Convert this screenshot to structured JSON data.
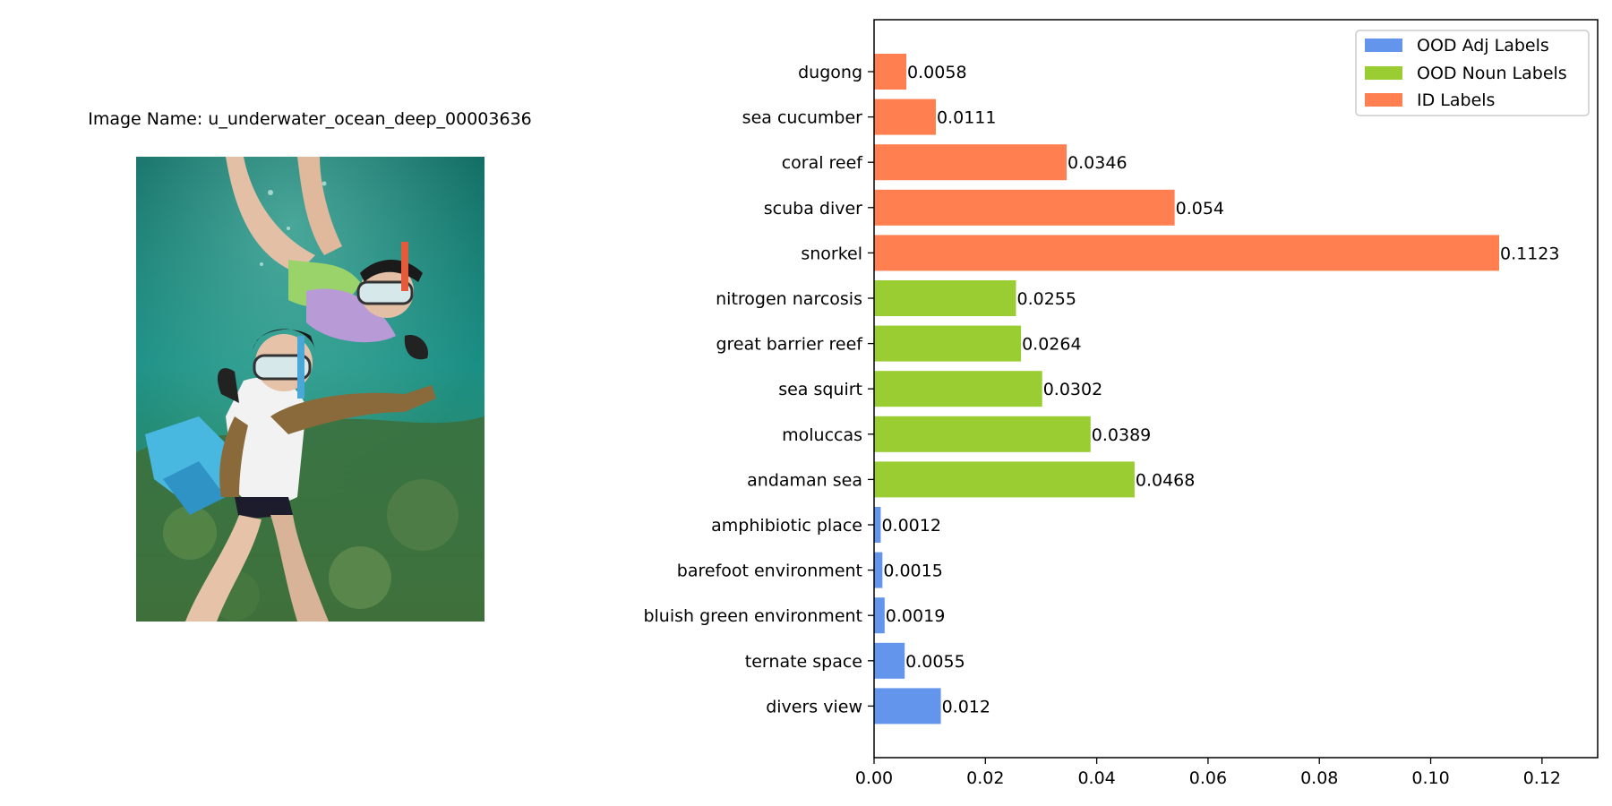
{
  "image_panel": {
    "caption": "Image Name: u_underwater_ocean_deep_00003636"
  },
  "chart_data": {
    "type": "bar",
    "orientation": "horizontal",
    "title": "",
    "xlabel": "",
    "ylabel": "",
    "xlim": [
      0,
      0.13
    ],
    "x_ticks": [
      0.0,
      0.02,
      0.04,
      0.06,
      0.08,
      0.1,
      0.12
    ],
    "x_tick_labels": [
      "0.00",
      "0.02",
      "0.04",
      "0.06",
      "0.08",
      "0.10",
      "0.12"
    ],
    "grid": false,
    "legend_position": "top-right",
    "series": [
      {
        "name": "OOD Adj Labels",
        "color": "#6495ED"
      },
      {
        "name": "OOD Noun Labels",
        "color": "#9ACD32"
      },
      {
        "name": "ID Labels",
        "color": "#FF7F50"
      }
    ],
    "bars": [
      {
        "label": "dugong",
        "value": 0.0058,
        "value_label": "0.0058",
        "series": 2
      },
      {
        "label": "sea cucumber",
        "value": 0.0111,
        "value_label": "0.0111",
        "series": 2
      },
      {
        "label": "coral reef",
        "value": 0.0346,
        "value_label": "0.0346",
        "series": 2
      },
      {
        "label": "scuba diver",
        "value": 0.054,
        "value_label": "0.054",
        "series": 2
      },
      {
        "label": "snorkel",
        "value": 0.1123,
        "value_label": "0.1123",
        "series": 2
      },
      {
        "label": "nitrogen narcosis",
        "value": 0.0255,
        "value_label": "0.0255",
        "series": 1
      },
      {
        "label": "great barrier reef",
        "value": 0.0264,
        "value_label": "0.0264",
        "series": 1
      },
      {
        "label": "sea squirt",
        "value": 0.0302,
        "value_label": "0.0302",
        "series": 1
      },
      {
        "label": "moluccas",
        "value": 0.0389,
        "value_label": "0.0389",
        "series": 1
      },
      {
        "label": "andaman sea",
        "value": 0.0468,
        "value_label": "0.0468",
        "series": 1
      },
      {
        "label": "amphibiotic place",
        "value": 0.0012,
        "value_label": "0.0012",
        "series": 0
      },
      {
        "label": "barefoot environment",
        "value": 0.0015,
        "value_label": "0.0015",
        "series": 0
      },
      {
        "label": "bluish green environment",
        "value": 0.0019,
        "value_label": "0.0019",
        "series": 0
      },
      {
        "label": "ternate space",
        "value": 0.0055,
        "value_label": "0.0055",
        "series": 0
      },
      {
        "label": "divers view",
        "value": 0.012,
        "value_label": "0.012",
        "series": 0
      }
    ]
  }
}
